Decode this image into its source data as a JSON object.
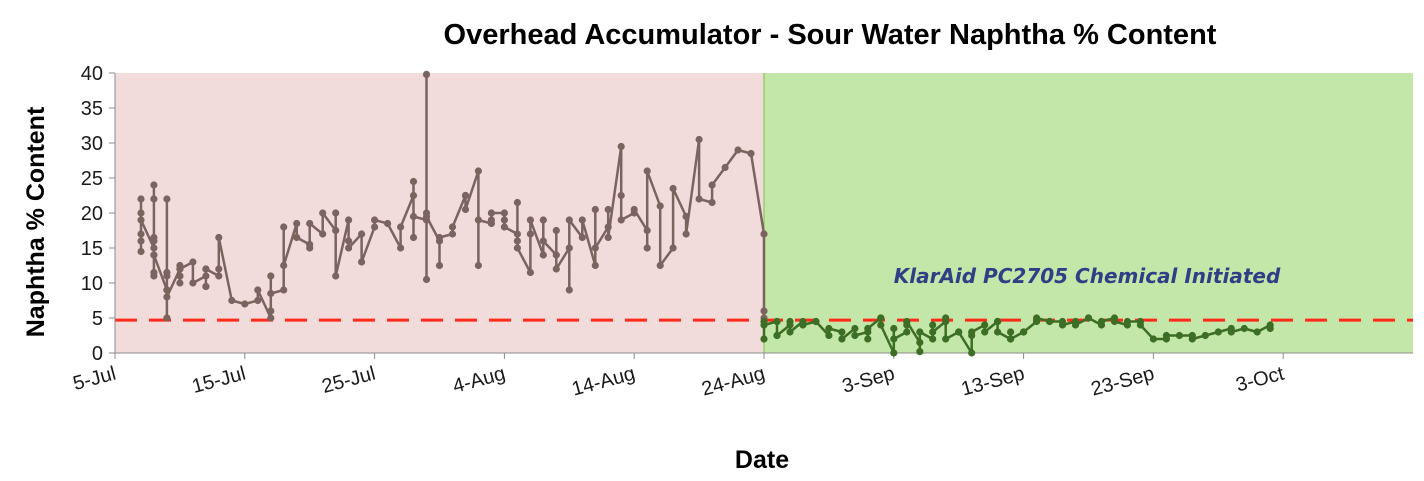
{
  "chart_data": {
    "type": "line",
    "title": "Overhead Accumulator - Sour Water Naphtha % Content",
    "xlabel": "Date",
    "ylabel": "Naphtha % Content",
    "ylim": [
      0,
      40
    ],
    "yticks": [
      "0",
      "5",
      "10",
      "15",
      "20",
      "25",
      "30",
      "35",
      "40"
    ],
    "xlim": [
      "2012-07-05",
      "2012-10-13"
    ],
    "xticks": [
      {
        "date": "2012-07-05",
        "label": "5-Jul"
      },
      {
        "date": "2012-07-15",
        "label": "15-Jul"
      },
      {
        "date": "2012-07-25",
        "label": "25-Jul"
      },
      {
        "date": "2012-08-04",
        "label": "4-Aug"
      },
      {
        "date": "2012-08-14",
        "label": "14-Aug"
      },
      {
        "date": "2012-08-24",
        "label": "24-Aug"
      },
      {
        "date": "2012-09-03",
        "label": "3-Sep"
      },
      {
        "date": "2012-09-13",
        "label": "13-Sep"
      },
      {
        "date": "2012-09-23",
        "label": "23-Sep"
      },
      {
        "date": "2012-10-03",
        "label": "3-Oct"
      }
    ],
    "grid": false,
    "regions": [
      {
        "from": "2012-07-05",
        "to": "2012-08-24",
        "color": "#f2dcdb"
      },
      {
        "from": "2012-08-24",
        "to": "2012-10-13",
        "color": "#c3e6a9"
      }
    ],
    "reference_line": {
      "y": 4.7,
      "color": "#ff2a1a",
      "style": "dashed"
    },
    "annotation": {
      "text": "KlarAid PC2705 Chemical Initiated",
      "color": "#2f3f86"
    },
    "series": [
      {
        "color": "#7b6360",
        "x": [
          "2012-07-07",
          "2012-07-07",
          "2012-07-07",
          "2012-07-07",
          "2012-07-07",
          "2012-07-07",
          "2012-07-08",
          "2012-07-08",
          "2012-07-08",
          "2012-07-08",
          "2012-07-08",
          "2012-07-08",
          "2012-07-08",
          "2012-07-08",
          "2012-07-08",
          "2012-07-09",
          "2012-07-09",
          "2012-07-09",
          "2012-07-09",
          "2012-07-09",
          "2012-07-09",
          "2012-07-09",
          "2012-07-10",
          "2012-07-10",
          "2012-07-10",
          "2012-07-10",
          "2012-07-10",
          "2012-07-10",
          "2012-07-11",
          "2012-07-11",
          "2012-07-12",
          "2012-07-12",
          "2012-07-12",
          "2012-07-12",
          "2012-07-12",
          "2012-07-13",
          "2012-07-13",
          "2012-07-13",
          "2012-07-14",
          "2012-07-15",
          "2012-07-16",
          "2012-07-16",
          "2012-07-17",
          "2012-07-17",
          "2012-07-17",
          "2012-07-17",
          "2012-07-18",
          "2012-07-18",
          "2012-07-18",
          "2012-07-19",
          "2012-07-19",
          "2012-07-20",
          "2012-07-20",
          "2012-07-20",
          "2012-07-21",
          "2012-07-21",
          "2012-07-22",
          "2012-07-22",
          "2012-07-22",
          "2012-07-23",
          "2012-07-23",
          "2012-07-23",
          "2012-07-24",
          "2012-07-24",
          "2012-07-25",
          "2012-07-25",
          "2012-07-26",
          "2012-07-27",
          "2012-07-27",
          "2012-07-28",
          "2012-07-28",
          "2012-07-28",
          "2012-07-28",
          "2012-07-29",
          "2012-07-29",
          "2012-07-29",
          "2012-07-29",
          "2012-07-29",
          "2012-07-30",
          "2012-07-30",
          "2012-07-30",
          "2012-07-31",
          "2012-07-31",
          "2012-08-01",
          "2012-08-01",
          "2012-08-01",
          "2012-08-02",
          "2012-08-02",
          "2012-08-02",
          "2012-08-03",
          "2012-08-03",
          "2012-08-03",
          "2012-08-04",
          "2012-08-04",
          "2012-08-04",
          "2012-08-05",
          "2012-08-05",
          "2012-08-05",
          "2012-08-05",
          "2012-08-06",
          "2012-08-06",
          "2012-08-06",
          "2012-08-07",
          "2012-08-07",
          "2012-08-07",
          "2012-08-08",
          "2012-08-08",
          "2012-08-08",
          "2012-08-09",
          "2012-08-09",
          "2012-08-09",
          "2012-08-10",
          "2012-08-10",
          "2012-08-11",
          "2012-08-11",
          "2012-08-11",
          "2012-08-12",
          "2012-08-12",
          "2012-08-12",
          "2012-08-13",
          "2012-08-13",
          "2012-08-13",
          "2012-08-14",
          "2012-08-14",
          "2012-08-15",
          "2012-08-15",
          "2012-08-15",
          "2012-08-16",
          "2012-08-16",
          "2012-08-17",
          "2012-08-17",
          "2012-08-18",
          "2012-08-18",
          "2012-08-19",
          "2012-08-19",
          "2012-08-20",
          "2012-08-20",
          "2012-08-21",
          "2012-08-22",
          "2012-08-23",
          "2012-08-24",
          "2012-08-24",
          "2012-08-24"
        ],
        "values": [
          14.5,
          17,
          20,
          22,
          16,
          19,
          15,
          11,
          11.5,
          16.5,
          14,
          22,
          24,
          16,
          14,
          9,
          5,
          11,
          22,
          9,
          11.5,
          8,
          12,
          10,
          11,
          11,
          12.5,
          12,
          13,
          10,
          11,
          9.5,
          12,
          9.5,
          12,
          11,
          12,
          16.5,
          7.5,
          7,
          7.5,
          9,
          5,
          11,
          6,
          8.5,
          9,
          18,
          12.5,
          18.5,
          16.5,
          15.5,
          15,
          18.5,
          17,
          20,
          17.5,
          20,
          11,
          19,
          16,
          15,
          17,
          13,
          18,
          19,
          18.5,
          15,
          18,
          22.5,
          16.5,
          24.5,
          19.5,
          19,
          20,
          39.8,
          10.5,
          19.5,
          16,
          12.5,
          16.5,
          17,
          18,
          22.5,
          22.5,
          20.5,
          26,
          12.5,
          19,
          18.5,
          19,
          20,
          20,
          19,
          18,
          17,
          21.5,
          16,
          15,
          11.5,
          17,
          19,
          14,
          19,
          16,
          14,
          17.5,
          12,
          15,
          9,
          19,
          16.5,
          19,
          12.5,
          20.5,
          15,
          18,
          20.5,
          16.5,
          29.5,
          22.5,
          19,
          20,
          20.5,
          17.5,
          15,
          26,
          21,
          12.5,
          15,
          23.5,
          19.5,
          17,
          30.5,
          22,
          21.5,
          24,
          26.5,
          29,
          28.5,
          17,
          6,
          5
        ]
      },
      {
        "color": "#3d6e25",
        "x": [
          "2012-08-24",
          "2012-08-24",
          "2012-08-24",
          "2012-08-25",
          "2012-08-25",
          "2012-08-25",
          "2012-08-25",
          "2012-08-26",
          "2012-08-26",
          "2012-08-26",
          "2012-08-27",
          "2012-08-27",
          "2012-08-28",
          "2012-08-28",
          "2012-08-29",
          "2012-08-29",
          "2012-08-30",
          "2012-08-30",
          "2012-08-31",
          "2012-08-31",
          "2012-09-01",
          "2012-09-01",
          "2012-09-01",
          "2012-09-02",
          "2012-09-02",
          "2012-09-02",
          "2012-09-03",
          "2012-09-03",
          "2012-09-03",
          "2012-09-04",
          "2012-09-04",
          "2012-09-04",
          "2012-09-05",
          "2012-09-05",
          "2012-09-05",
          "2012-09-06",
          "2012-09-06",
          "2012-09-06",
          "2012-09-07",
          "2012-09-07",
          "2012-09-07",
          "2012-09-08",
          "2012-09-08",
          "2012-09-09",
          "2012-09-09",
          "2012-09-09",
          "2012-09-10",
          "2012-09-10",
          "2012-09-11",
          "2012-09-11",
          "2012-09-11",
          "2012-09-12",
          "2012-09-12",
          "2012-09-12",
          "2012-09-13",
          "2012-09-13",
          "2012-09-14",
          "2012-09-14",
          "2012-09-15",
          "2012-09-15",
          "2012-09-16",
          "2012-09-16",
          "2012-09-17",
          "2012-09-17",
          "2012-09-18",
          "2012-09-18",
          "2012-09-19",
          "2012-09-19",
          "2012-09-20",
          "2012-09-20",
          "2012-09-21",
          "2012-09-21",
          "2012-09-22",
          "2012-09-22",
          "2012-09-23",
          "2012-09-24",
          "2012-09-24",
          "2012-09-25",
          "2012-09-26",
          "2012-09-26",
          "2012-09-27",
          "2012-09-28",
          "2012-09-29",
          "2012-09-29",
          "2012-09-30",
          "2012-10-01",
          "2012-10-02",
          "2012-10-02"
        ],
        "values": [
          4.5,
          2,
          4,
          4.5,
          2.5,
          4.5,
          2.5,
          4,
          4.5,
          3,
          4.5,
          4,
          4.5,
          4.5,
          2.5,
          3.5,
          3,
          2,
          3.5,
          2.5,
          3,
          2,
          3.5,
          5,
          5,
          4,
          0,
          3.5,
          2,
          3,
          4,
          4.5,
          1.5,
          0.2,
          3,
          2,
          4,
          3,
          4.5,
          5,
          2,
          3,
          3,
          0,
          2.5,
          3,
          4,
          3,
          4.5,
          4.5,
          3,
          2,
          3,
          2,
          3,
          3,
          4.5,
          5,
          4.5,
          4.5,
          4.5,
          4,
          4.5,
          4,
          5,
          5,
          4,
          4.5,
          5,
          4.5,
          4,
          4.5,
          4.5,
          4,
          2,
          2,
          2.5,
          2.5,
          2.5,
          2,
          2.5,
          3,
          3.5,
          3,
          3.5,
          3,
          4,
          3.5
        ]
      }
    ]
  }
}
